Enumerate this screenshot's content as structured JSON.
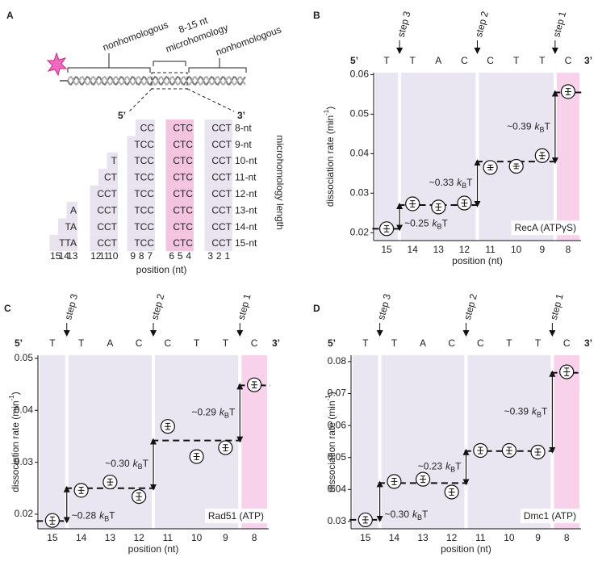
{
  "diagram": {
    "panel": "A",
    "left_label": "nonhomologous",
    "micro_label": [
      "8-15 nt",
      "microhomology"
    ],
    "right_label": "nonhomologous",
    "five_prime": "5’",
    "three_prime": "3’",
    "rows": [
      {
        "label": "8-nt",
        "cells": [
          null,
          null,
          "CC",
          "CTC",
          "CCT"
        ]
      },
      {
        "label": "9-nt",
        "cells": [
          null,
          null,
          "TCC",
          "CTC",
          "CCT"
        ]
      },
      {
        "label": "10-nt",
        "cells": [
          null,
          "T",
          "TCC",
          "CTC",
          "CCT"
        ]
      },
      {
        "label": "11-nt",
        "cells": [
          null,
          "CT",
          "TCC",
          "CTC",
          "CCT"
        ]
      },
      {
        "label": "12-nt",
        "cells": [
          null,
          "CCT",
          "TCC",
          "CTC",
          "CCT"
        ]
      },
      {
        "label": "13-nt",
        "cells": [
          "A",
          "CCT",
          "TCC",
          "CTC",
          "CCT"
        ]
      },
      {
        "label": "14-nt",
        "cells": [
          "TA",
          "CCT",
          "TCC",
          "CTC",
          "CCT"
        ]
      },
      {
        "label": "15-nt",
        "cells": [
          "TTA",
          "CCT",
          "TCC",
          "CTC",
          "CCT"
        ]
      }
    ],
    "positions": [
      15,
      14,
      13,
      12,
      11,
      10,
      9,
      8,
      7,
      6,
      5,
      4,
      3,
      2,
      1
    ],
    "x_label": "position (nt)",
    "y_label": "microhomology length"
  },
  "chart_data": [
    {
      "type": "step",
      "panel": "B",
      "label": "RecA (ATPγS)",
      "categories": [
        "15",
        "14",
        "13",
        "12",
        "11",
        "10",
        "9",
        "8"
      ],
      "sequence": [
        "T",
        "T",
        "A",
        "C",
        "C",
        "T",
        "T",
        "C"
      ],
      "five_prime": "5’",
      "three_prime": "3’",
      "values": [
        0.021,
        0.0273,
        0.0265,
        0.0275,
        0.0365,
        0.0368,
        0.0395,
        0.0557
      ],
      "errors": [
        0.0008,
        0.0008,
        0.0008,
        0.0008,
        0.0006,
        0.0006,
        0.0008,
        0.0008
      ],
      "levels": [
        0.021,
        0.027,
        0.038,
        0.0555
      ],
      "steps": [
        "step 3",
        "step 2",
        "step 1"
      ],
      "step_energies": [
        "~0.25",
        "~0.33",
        "~0.39"
      ],
      "energy_unit": [
        "k",
        "B",
        "T"
      ],
      "ylim": [
        0.018,
        0.0605
      ],
      "yticks": [
        0.02,
        0.03,
        0.04,
        0.05,
        0.06
      ],
      "x_label": "position (nt)",
      "y_label": [
        "dissociation rate (min",
        "-1",
        ")"
      ]
    },
    {
      "type": "step",
      "panel": "C",
      "label": "Rad51 (ATP)",
      "categories": [
        "15",
        "14",
        "13",
        "12",
        "11",
        "10",
        "9",
        "8"
      ],
      "sequence": [
        "T",
        "T",
        "A",
        "C",
        "C",
        "T",
        "T",
        "C"
      ],
      "five_prime": "5’",
      "three_prime": "3’",
      "values": [
        0.0188,
        0.0246,
        0.0262,
        0.0234,
        0.0369,
        0.0311,
        0.0328,
        0.0449
      ],
      "errors": [
        0.0007,
        0.0006,
        0.0006,
        0.0007,
        0.0006,
        0.0006,
        0.0006,
        0.0006
      ],
      "levels": [
        0.0187,
        0.025,
        0.0342,
        0.0448
      ],
      "steps": [
        "step 3",
        "step 2",
        "step 1"
      ],
      "step_energies": [
        "~0.28",
        "~0.30",
        "~0.29"
      ],
      "energy_unit": [
        "k",
        "B",
        "T"
      ],
      "ylim": [
        0.0172,
        0.0506
      ],
      "yticks": [
        0.02,
        0.03,
        0.04,
        0.05
      ],
      "x_label": "position (nt)",
      "y_label": [
        "dissociation rate (min",
        "-1",
        ")"
      ]
    },
    {
      "type": "step",
      "panel": "D",
      "label": "Dmc1 (ATP)",
      "categories": [
        "15",
        "14",
        "13",
        "12",
        "11",
        "10",
        "9",
        "8"
      ],
      "sequence": [
        "T",
        "T",
        "A",
        "C",
        "C",
        "T",
        "T",
        "C"
      ],
      "five_prime": "5’",
      "three_prime": "3’",
      "values": [
        0.0305,
        0.0425,
        0.0432,
        0.0392,
        0.0522,
        0.0522,
        0.0517,
        0.0768
      ],
      "errors": [
        0.001,
        0.001,
        0.001,
        0.001,
        0.001,
        0.001,
        0.001,
        0.0012
      ],
      "levels": [
        0.0305,
        0.042,
        0.052,
        0.0765
      ],
      "steps": [
        "step 3",
        "step 2",
        "step 1"
      ],
      "step_energies": [
        "~0.30",
        "~0.23",
        "~0.39"
      ],
      "energy_unit": [
        "k",
        "B",
        "T"
      ],
      "ylim": [
        0.0277,
        0.082
      ],
      "yticks": [
        0.03,
        0.04,
        0.05,
        0.06,
        0.07,
        0.08
      ],
      "x_label": "position (nt)",
      "y_label": [
        "dissociation rate (min",
        "-1",
        ")"
      ]
    }
  ]
}
